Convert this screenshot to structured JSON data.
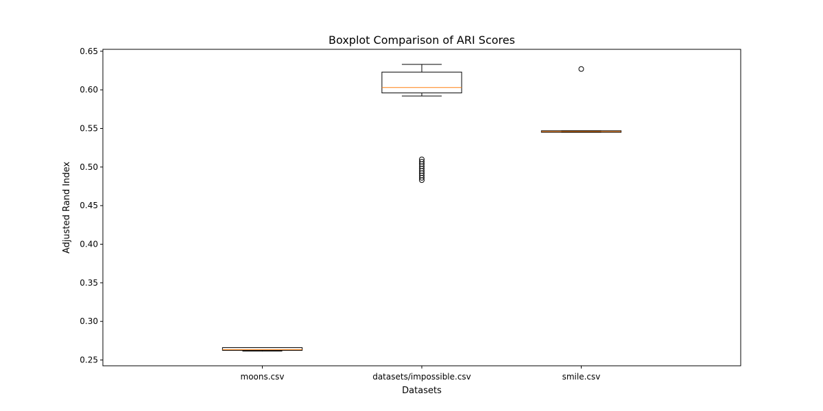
{
  "chart_data": {
    "type": "boxplot",
    "title": "Boxplot Comparison of ARI Scores",
    "xlabel": "Datasets",
    "ylabel": "Adjusted Rand Index",
    "ylim": [
      0.2425,
      0.6525
    ],
    "yticks": [
      "0.25",
      "0.30",
      "0.35",
      "0.40",
      "0.45",
      "0.50",
      "0.55",
      "0.60",
      "0.65"
    ],
    "categories": [
      "moons.csv",
      "datasets/impossible.csv",
      "smile.csv"
    ],
    "boxes": [
      {
        "category": "moons.csv",
        "whisker_low": 0.2615,
        "q1": 0.2625,
        "median": 0.2635,
        "q3": 0.266,
        "whisker_high": 0.266,
        "outliers": []
      },
      {
        "category": "datasets/impossible.csv",
        "whisker_low": 0.592,
        "q1": 0.596,
        "median": 0.603,
        "q3": 0.623,
        "whisker_high": 0.633,
        "outliers": [
          0.483,
          0.486,
          0.489,
          0.492,
          0.495,
          0.498,
          0.501,
          0.504,
          0.507,
          0.51
        ]
      },
      {
        "category": "smile.csv",
        "whisker_low": 0.545,
        "q1": 0.545,
        "median": 0.546,
        "q3": 0.547,
        "whisker_high": 0.547,
        "outliers": [
          0.627
        ]
      }
    ],
    "grid": false,
    "colors": {
      "box": "#000000",
      "median": "#ff7f0e",
      "outlier": "#000000"
    }
  }
}
